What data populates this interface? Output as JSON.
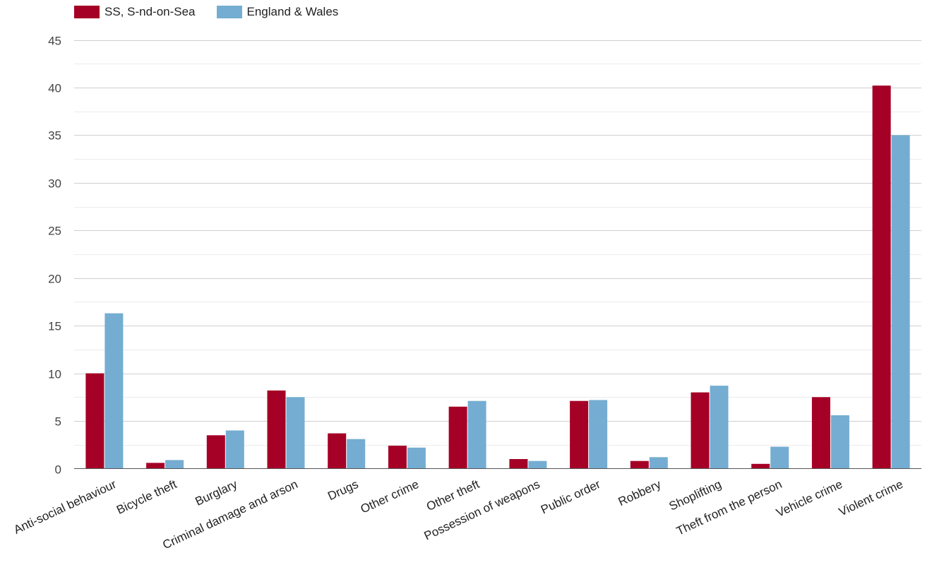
{
  "chart_data": {
    "type": "bar",
    "categories": [
      "Anti-social behaviour",
      "Bicycle theft",
      "Burglary",
      "Criminal damage and arson",
      "Drugs",
      "Other crime",
      "Other theft",
      "Possession of weapons",
      "Public order",
      "Robbery",
      "Shoplifting",
      "Theft from the person",
      "Vehicle crime",
      "Violent crime"
    ],
    "series": [
      {
        "name": "SS, S-nd-on-Sea",
        "color": "#a50026",
        "values": [
          10.0,
          0.6,
          3.5,
          8.2,
          3.7,
          2.4,
          6.5,
          1.0,
          7.1,
          0.8,
          8.0,
          0.5,
          7.5,
          40.2
        ]
      },
      {
        "name": "England & Wales",
        "color": "#74add1",
        "values": [
          16.3,
          0.9,
          4.0,
          7.5,
          3.1,
          2.2,
          7.1,
          0.8,
          7.2,
          1.2,
          8.7,
          2.3,
          5.6,
          35.0
        ]
      }
    ],
    "ylim": [
      0,
      45
    ],
    "yticks": [
      0,
      5,
      10,
      15,
      20,
      25,
      30,
      35,
      40,
      45
    ],
    "minor_grid": true,
    "grid": true,
    "legend": "top-left",
    "title": "",
    "xlabel": "",
    "ylabel": ""
  }
}
